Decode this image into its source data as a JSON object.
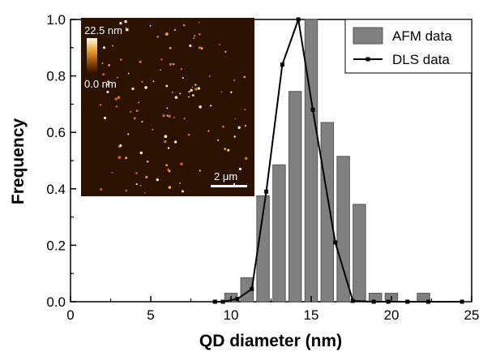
{
  "chart_data": {
    "type": "bar",
    "xlabel": "QD diameter (nm)",
    "ylabel": "Frequency",
    "xlim": [
      0,
      25
    ],
    "ylim": [
      0,
      1.0
    ],
    "x_ticks": [
      "0",
      "5",
      "10",
      "15",
      "20",
      "25"
    ],
    "y_ticks": [
      "0.0",
      "0.2",
      "0.4",
      "0.6",
      "0.8",
      "1.0"
    ],
    "legend_position": "top-right",
    "colors": {
      "bars": "#808080",
      "bar_edge": "#555555",
      "line": "#000000"
    },
    "series": [
      {
        "name": "AFM data",
        "type": "bar",
        "x": [
          10,
          11,
          12,
          13,
          14,
          15,
          16,
          17,
          18,
          19,
          20,
          22
        ],
        "values": [
          0.03,
          0.085,
          0.375,
          0.485,
          0.745,
          1.0,
          0.635,
          0.515,
          0.345,
          0.03,
          0.03,
          0.03
        ]
      },
      {
        "name": "DLS data",
        "type": "line",
        "x": [
          9.0,
          9.5,
          10.4,
          11.3,
          12.2,
          13.2,
          14.2,
          15.1,
          16.5,
          17.6,
          18.9,
          19.8,
          21.0,
          22.3,
          24.4
        ],
        "values": [
          0,
          0,
          0.01,
          0.045,
          0.39,
          0.84,
          1.0,
          0.68,
          0.21,
          0.003,
          0,
          0,
          0,
          0,
          0
        ]
      }
    ],
    "inset": {
      "scale_max": "22.5 nm",
      "scale_min": "0.0 nm",
      "scale_bar": "2 μm"
    }
  }
}
